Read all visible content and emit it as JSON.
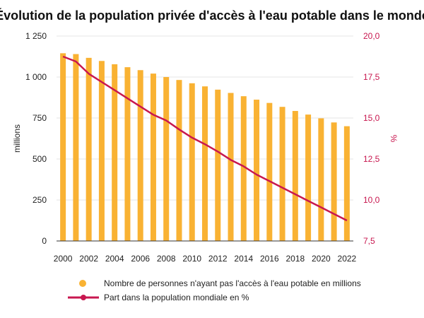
{
  "chart_data": {
    "type": "bar+line",
    "title": "Évolution de la population privée d'accès à l'eau potable dans le monde",
    "categories": [
      "2000",
      "2001",
      "2002",
      "2003",
      "2004",
      "2005",
      "2006",
      "2007",
      "2008",
      "2009",
      "2010",
      "2011",
      "2012",
      "2013",
      "2014",
      "2015",
      "2016",
      "2017",
      "2018",
      "2019",
      "2020",
      "2021",
      "2022"
    ],
    "x_tick_labels": [
      "2000",
      "2002",
      "2004",
      "2006",
      "2008",
      "2010",
      "2012",
      "2014",
      "2016",
      "2018",
      "2020",
      "2022"
    ],
    "series": [
      {
        "name": "Nombre de personnes n'ayant pas l'accès à l'eau potable en millions",
        "kind": "bar",
        "axis": "left",
        "color": "#F9B233",
        "values": [
          1145,
          1140,
          1117,
          1098,
          1078,
          1060,
          1042,
          1021,
          1000,
          982,
          962,
          943,
          923,
          903,
          883,
          862,
          842,
          818,
          793,
          771,
          748,
          723,
          700
        ]
      },
      {
        "name": "Part dans la population mondiale en %",
        "kind": "line",
        "axis": "right",
        "color": "#C8174F",
        "values": [
          18.75,
          18.45,
          17.7,
          17.2,
          16.7,
          16.2,
          15.7,
          15.2,
          14.85,
          14.3,
          13.8,
          13.4,
          12.95,
          12.45,
          12.05,
          11.55,
          11.15,
          10.75,
          10.35,
          9.95,
          9.55,
          9.15,
          8.75
        ]
      }
    ],
    "y_left": {
      "label": "millions",
      "range": [
        0,
        1250
      ],
      "ticks": [
        0,
        250,
        500,
        750,
        1000,
        1250
      ],
      "tick_labels": [
        "0",
        "250",
        "500",
        "750",
        "1 000",
        "1 250"
      ]
    },
    "y_right": {
      "label": "%",
      "range": [
        7.5,
        20
      ],
      "ticks": [
        7.5,
        10,
        12.5,
        15,
        17.5,
        20
      ],
      "tick_labels": [
        "7,5",
        "10,0",
        "12,5",
        "15,0",
        "17,5",
        "20,0"
      ],
      "color": "#C8174F"
    },
    "grid": true,
    "legend_position": "bottom"
  }
}
